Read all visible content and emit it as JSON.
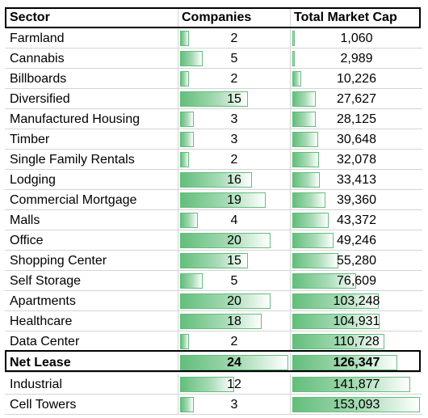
{
  "headers": {
    "sector": "Sector",
    "companies": "Companies",
    "market_cap": "Total Market Cap"
  },
  "rows": [
    {
      "sector": "Farmland",
      "companies": "2",
      "market_cap": "1,060"
    },
    {
      "sector": "Cannabis",
      "companies": "5",
      "market_cap": "2,989"
    },
    {
      "sector": "Billboards",
      "companies": "2",
      "market_cap": "10,226"
    },
    {
      "sector": "Diversified",
      "companies": "15",
      "market_cap": "27,627"
    },
    {
      "sector": "Manufactured Housing",
      "companies": "3",
      "market_cap": "28,125"
    },
    {
      "sector": "Timber",
      "companies": "3",
      "market_cap": "30,648"
    },
    {
      "sector": "Single Family Rentals",
      "companies": "2",
      "market_cap": "32,078"
    },
    {
      "sector": "Lodging",
      "companies": "16",
      "market_cap": "33,413"
    },
    {
      "sector": "Commercial Mortgage",
      "companies": "19",
      "market_cap": "39,360"
    },
    {
      "sector": "Malls",
      "companies": "4",
      "market_cap": "43,372"
    },
    {
      "sector": "Office",
      "companies": "20",
      "market_cap": "49,246"
    },
    {
      "sector": "Shopping Center",
      "companies": "15",
      "market_cap": "55,280"
    },
    {
      "sector": "Self Storage",
      "companies": "5",
      "market_cap": "76,609"
    },
    {
      "sector": "Apartments",
      "companies": "20",
      "market_cap": "103,248"
    },
    {
      "sector": "Healthcare",
      "companies": "18",
      "market_cap": "104,931"
    },
    {
      "sector": "Data Center",
      "companies": "2",
      "market_cap": "110,728"
    },
    {
      "sector": "Net Lease",
      "companies": "24",
      "market_cap": "126,347",
      "highlighted": true
    },
    {
      "sector": "Industrial",
      "companies": "12",
      "market_cap": "141,877"
    },
    {
      "sector": "Cell Towers",
      "companies": "3",
      "market_cap": "153,093"
    }
  ],
  "data_bars": {
    "color": "#63be7b",
    "companies_max": 24,
    "market_cap_max": 153093
  }
}
